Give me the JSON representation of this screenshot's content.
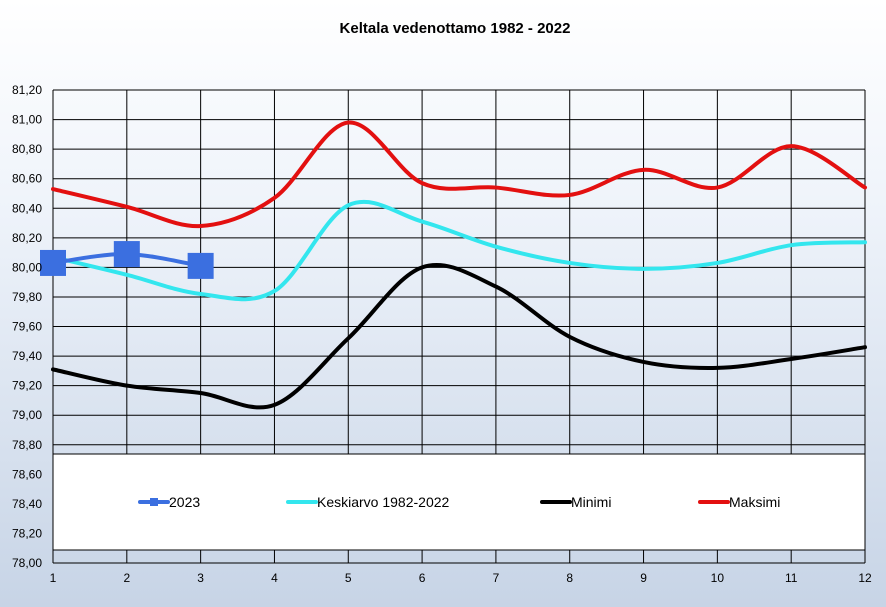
{
  "chart_data": {
    "type": "line",
    "title": "Keltala vedenottamo 1982 - 2022",
    "xlabel": "",
    "ylabel": "",
    "x": [
      1,
      2,
      3,
      4,
      5,
      6,
      7,
      8,
      9,
      10,
      11,
      12
    ],
    "xlim": [
      1,
      12
    ],
    "ylim": [
      78.0,
      81.2
    ],
    "y_ticks": [
      "78,00",
      "78,20",
      "78,40",
      "78,60",
      "78,80",
      "79,00",
      "79,20",
      "79,40",
      "79,60",
      "79,80",
      "80,00",
      "80,20",
      "80,40",
      "80,60",
      "80,80",
      "81,00",
      "81,20"
    ],
    "x_ticks": [
      "1",
      "2",
      "3",
      "4",
      "5",
      "6",
      "7",
      "8",
      "9",
      "10",
      "11",
      "12"
    ],
    "grid": true,
    "legend_position": "bottom",
    "series": [
      {
        "name": "2023",
        "color": "#3b6fe0",
        "marker": "square",
        "x": [
          1,
          2,
          3
        ],
        "values": [
          80.03,
          80.09,
          80.01
        ]
      },
      {
        "name": "Keskiarvo 1982-2022",
        "color": "#33e6ee",
        "marker": "none",
        "x": [
          1,
          2,
          3,
          4,
          5,
          6,
          7,
          8,
          9,
          10,
          11,
          12
        ],
        "values": [
          80.07,
          79.95,
          79.82,
          79.84,
          80.42,
          80.31,
          80.14,
          80.03,
          79.99,
          80.03,
          80.15,
          80.17
        ]
      },
      {
        "name": "Minimi",
        "color": "#000000",
        "marker": "none",
        "x": [
          1,
          2,
          3,
          4,
          5,
          6,
          7,
          8,
          9,
          10,
          11,
          12
        ],
        "values": [
          79.31,
          79.2,
          79.15,
          79.07,
          79.52,
          80.0,
          79.87,
          79.53,
          79.36,
          79.32,
          79.38,
          79.46
        ]
      },
      {
        "name": "Maksimi",
        "color": "#e31010",
        "marker": "none",
        "x": [
          1,
          2,
          3,
          4,
          5,
          6,
          7,
          8,
          9,
          10,
          11,
          12
        ],
        "values": [
          80.53,
          80.41,
          80.28,
          80.47,
          80.98,
          80.57,
          80.54,
          80.49,
          80.66,
          80.54,
          80.82,
          80.54
        ]
      }
    ]
  }
}
